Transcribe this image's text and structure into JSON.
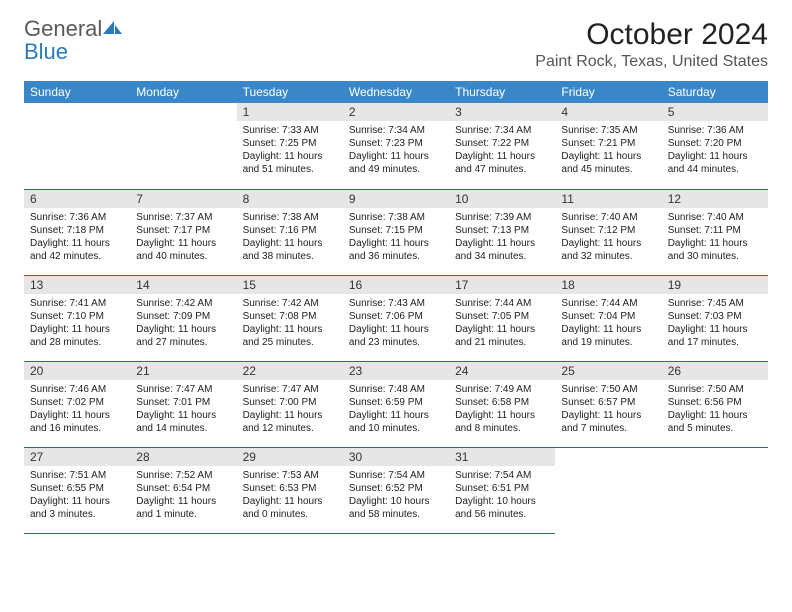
{
  "brand": {
    "word1": "General",
    "word2": "Blue"
  },
  "title": "October 2024",
  "location": "Paint Rock, Texas, United States",
  "colors": {
    "header_bg": "#3a87c7",
    "header_text": "#ffffff",
    "daynum_bg": "#e6e6e6",
    "row_border": "#2a6a9e",
    "brand_gray": "#5a5a5a",
    "brand_blue": "#2a7ab9"
  },
  "day_headers": [
    "Sunday",
    "Monday",
    "Tuesday",
    "Wednesday",
    "Thursday",
    "Friday",
    "Saturday"
  ],
  "weeks": [
    [
      null,
      null,
      {
        "n": "1",
        "sunrise": "7:33 AM",
        "sunset": "7:25 PM",
        "daylight": "11 hours and 51 minutes."
      },
      {
        "n": "2",
        "sunrise": "7:34 AM",
        "sunset": "7:23 PM",
        "daylight": "11 hours and 49 minutes."
      },
      {
        "n": "3",
        "sunrise": "7:34 AM",
        "sunset": "7:22 PM",
        "daylight": "11 hours and 47 minutes."
      },
      {
        "n": "4",
        "sunrise": "7:35 AM",
        "sunset": "7:21 PM",
        "daylight": "11 hours and 45 minutes."
      },
      {
        "n": "5",
        "sunrise": "7:36 AM",
        "sunset": "7:20 PM",
        "daylight": "11 hours and 44 minutes."
      }
    ],
    [
      {
        "n": "6",
        "sunrise": "7:36 AM",
        "sunset": "7:18 PM",
        "daylight": "11 hours and 42 minutes."
      },
      {
        "n": "7",
        "sunrise": "7:37 AM",
        "sunset": "7:17 PM",
        "daylight": "11 hours and 40 minutes."
      },
      {
        "n": "8",
        "sunrise": "7:38 AM",
        "sunset": "7:16 PM",
        "daylight": "11 hours and 38 minutes."
      },
      {
        "n": "9",
        "sunrise": "7:38 AM",
        "sunset": "7:15 PM",
        "daylight": "11 hours and 36 minutes."
      },
      {
        "n": "10",
        "sunrise": "7:39 AM",
        "sunset": "7:13 PM",
        "daylight": "11 hours and 34 minutes."
      },
      {
        "n": "11",
        "sunrise": "7:40 AM",
        "sunset": "7:12 PM",
        "daylight": "11 hours and 32 minutes."
      },
      {
        "n": "12",
        "sunrise": "7:40 AM",
        "sunset": "7:11 PM",
        "daylight": "11 hours and 30 minutes."
      }
    ],
    [
      {
        "n": "13",
        "sunrise": "7:41 AM",
        "sunset": "7:10 PM",
        "daylight": "11 hours and 28 minutes."
      },
      {
        "n": "14",
        "sunrise": "7:42 AM",
        "sunset": "7:09 PM",
        "daylight": "11 hours and 27 minutes."
      },
      {
        "n": "15",
        "sunrise": "7:42 AM",
        "sunset": "7:08 PM",
        "daylight": "11 hours and 25 minutes."
      },
      {
        "n": "16",
        "sunrise": "7:43 AM",
        "sunset": "7:06 PM",
        "daylight": "11 hours and 23 minutes."
      },
      {
        "n": "17",
        "sunrise": "7:44 AM",
        "sunset": "7:05 PM",
        "daylight": "11 hours and 21 minutes."
      },
      {
        "n": "18",
        "sunrise": "7:44 AM",
        "sunset": "7:04 PM",
        "daylight": "11 hours and 19 minutes."
      },
      {
        "n": "19",
        "sunrise": "7:45 AM",
        "sunset": "7:03 PM",
        "daylight": "11 hours and 17 minutes."
      }
    ],
    [
      {
        "n": "20",
        "sunrise": "7:46 AM",
        "sunset": "7:02 PM",
        "daylight": "11 hours and 16 minutes."
      },
      {
        "n": "21",
        "sunrise": "7:47 AM",
        "sunset": "7:01 PM",
        "daylight": "11 hours and 14 minutes."
      },
      {
        "n": "22",
        "sunrise": "7:47 AM",
        "sunset": "7:00 PM",
        "daylight": "11 hours and 12 minutes."
      },
      {
        "n": "23",
        "sunrise": "7:48 AM",
        "sunset": "6:59 PM",
        "daylight": "11 hours and 10 minutes."
      },
      {
        "n": "24",
        "sunrise": "7:49 AM",
        "sunset": "6:58 PM",
        "daylight": "11 hours and 8 minutes."
      },
      {
        "n": "25",
        "sunrise": "7:50 AM",
        "sunset": "6:57 PM",
        "daylight": "11 hours and 7 minutes."
      },
      {
        "n": "26",
        "sunrise": "7:50 AM",
        "sunset": "6:56 PM",
        "daylight": "11 hours and 5 minutes."
      }
    ],
    [
      {
        "n": "27",
        "sunrise": "7:51 AM",
        "sunset": "6:55 PM",
        "daylight": "11 hours and 3 minutes."
      },
      {
        "n": "28",
        "sunrise": "7:52 AM",
        "sunset": "6:54 PM",
        "daylight": "11 hours and 1 minute."
      },
      {
        "n": "29",
        "sunrise": "7:53 AM",
        "sunset": "6:53 PM",
        "daylight": "11 hours and 0 minutes."
      },
      {
        "n": "30",
        "sunrise": "7:54 AM",
        "sunset": "6:52 PM",
        "daylight": "10 hours and 58 minutes."
      },
      {
        "n": "31",
        "sunrise": "7:54 AM",
        "sunset": "6:51 PM",
        "daylight": "10 hours and 56 minutes."
      },
      null,
      null
    ]
  ],
  "labels": {
    "sunrise": "Sunrise:",
    "sunset": "Sunset:",
    "daylight": "Daylight:"
  }
}
